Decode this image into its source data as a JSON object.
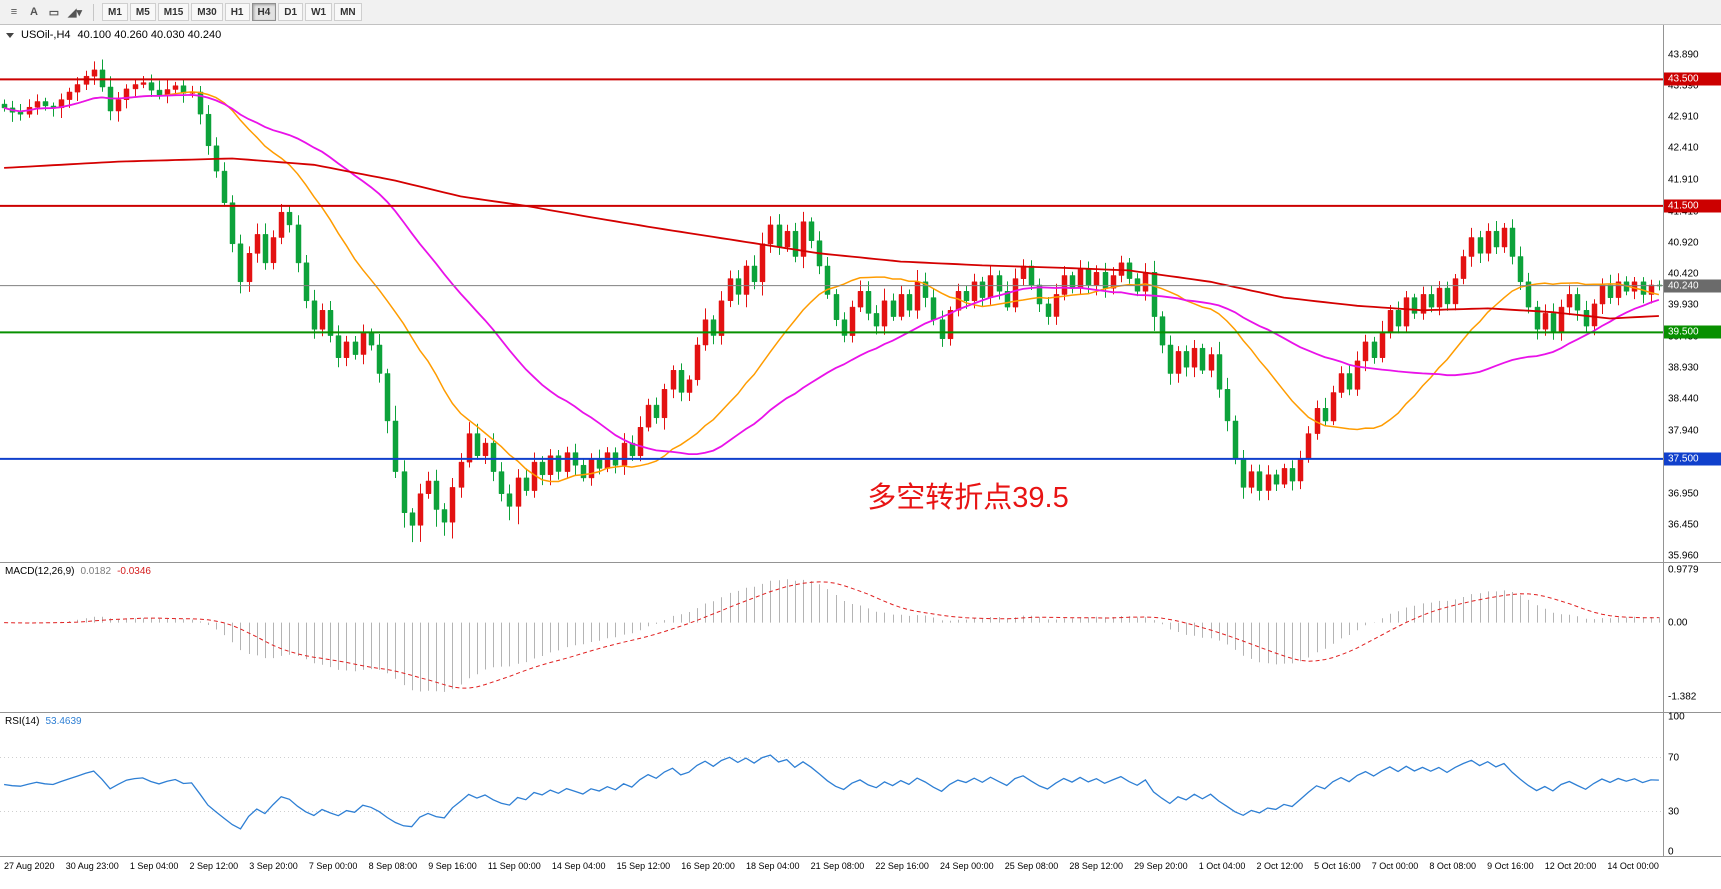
{
  "toolbar": {
    "tools": [
      {
        "id": "chart-objects",
        "glyph": "≡"
      },
      {
        "id": "text-tool",
        "glyph": "A"
      },
      {
        "id": "rectangle-tool",
        "glyph": "▭"
      },
      {
        "id": "draw-tools",
        "glyph": "◢▾"
      }
    ],
    "timeframes": [
      "M1",
      "M5",
      "M15",
      "M30",
      "H1",
      "H4",
      "D1",
      "W1",
      "MN"
    ],
    "active_timeframe": "H4"
  },
  "chart": {
    "symbol_title": "USOil-,H4",
    "ohlc": "40.100 40.260 40.030 40.240",
    "annotation": "多空转折点39.5",
    "price_badge": "40.240",
    "y_ticks": [
      "43.890",
      "43.390",
      "42.910",
      "42.410",
      "41.910",
      "41.410",
      "40.920",
      "40.420",
      "39.930",
      "39.430",
      "38.930",
      "38.440",
      "37.940",
      "37.440",
      "36.950",
      "36.450",
      "35.960"
    ]
  },
  "macd_panel": {
    "name": "MACD(12,26,9)",
    "value_main": "0.0182",
    "value_signal": "-0.0346",
    "y_ticks": [
      "0.9779",
      "0.00",
      "-1.382"
    ]
  },
  "rsi_panel": {
    "name": "RSI(14)",
    "value": "53.4639",
    "y_ticks": [
      "100",
      "70",
      "30",
      "0"
    ]
  },
  "time_axis": [
    "27 Aug 2020",
    "30 Aug 23:00",
    "1 Sep 04:00",
    "2 Sep 12:00",
    "3 Sep 20:00",
    "7 Sep 00:00",
    "8 Sep 08:00",
    "9 Sep 16:00",
    "11 Sep 00:00",
    "14 Sep 04:00",
    "15 Sep 12:00",
    "16 Sep 20:00",
    "18 Sep 04:00",
    "21 Sep 08:00",
    "22 Sep 16:00",
    "24 Sep 00:00",
    "25 Sep 08:00",
    "28 Sep 12:00",
    "29 Sep 20:00",
    "1 Oct 04:00",
    "2 Oct 12:00",
    "5 Oct 16:00",
    "7 Oct 00:00",
    "8 Oct 08:00",
    "9 Oct 16:00",
    "12 Oct 20:00",
    "14 Oct 00:00"
  ],
  "chart_data": {
    "type": "candlestick",
    "symbol": "USOil-",
    "period": "H4",
    "y_range": [
      35.87,
      44.36
    ],
    "up_color": "#e31212",
    "down_color": "#0da23a",
    "candles": {
      "closes": [
        43.05,
        42.98,
        42.95,
        43.06,
        43.15,
        43.08,
        43.05,
        43.18,
        43.3,
        43.42,
        43.55,
        43.65,
        43.38,
        43.0,
        43.18,
        43.35,
        43.42,
        43.45,
        43.33,
        43.25,
        43.34,
        43.4,
        43.28,
        43.3,
        42.95,
        42.45,
        42.05,
        41.55,
        40.9,
        40.3,
        40.75,
        41.05,
        40.6,
        41.0,
        41.4,
        41.2,
        40.6,
        40.0,
        39.55,
        39.85,
        39.45,
        39.1,
        39.35,
        39.15,
        39.5,
        39.3,
        38.85,
        38.1,
        37.3,
        36.65,
        36.45,
        36.95,
        37.15,
        36.7,
        36.5,
        37.05,
        37.45,
        37.9,
        37.55,
        37.75,
        37.3,
        36.95,
        36.75,
        37.2,
        37.0,
        37.45,
        37.25,
        37.55,
        37.3,
        37.6,
        37.4,
        37.2,
        37.5,
        37.35,
        37.6,
        37.4,
        37.75,
        37.55,
        38.0,
        38.35,
        38.15,
        38.6,
        38.9,
        38.55,
        38.75,
        39.3,
        39.7,
        39.45,
        40.0,
        40.35,
        40.1,
        40.55,
        40.3,
        40.9,
        41.2,
        40.85,
        41.1,
        40.7,
        41.25,
        40.95,
        40.55,
        40.1,
        39.7,
        39.45,
        39.9,
        40.15,
        39.8,
        39.6,
        40.0,
        39.75,
        40.1,
        39.85,
        40.3,
        40.05,
        39.7,
        39.4,
        39.85,
        40.15,
        40.0,
        40.3,
        40.05,
        40.4,
        40.15,
        39.9,
        40.35,
        40.55,
        40.25,
        39.95,
        39.75,
        40.1,
        40.4,
        40.2,
        40.5,
        40.25,
        40.45,
        40.2,
        40.4,
        40.6,
        40.35,
        40.15,
        40.45,
        39.75,
        39.3,
        38.85,
        39.2,
        38.95,
        39.25,
        38.9,
        39.15,
        38.6,
        38.1,
        37.5,
        37.05,
        37.3,
        37.0,
        37.25,
        37.1,
        37.35,
        37.15,
        37.5,
        37.9,
        38.3,
        38.1,
        38.55,
        38.85,
        38.6,
        39.05,
        39.35,
        39.1,
        39.5,
        39.85,
        39.6,
        40.05,
        39.8,
        40.1,
        39.9,
        40.2,
        39.95,
        40.35,
        40.7,
        41.0,
        40.75,
        41.1,
        40.85,
        41.15,
        40.7,
        40.3,
        39.9,
        39.55,
        39.8,
        39.5,
        39.9,
        40.1,
        39.85,
        39.6,
        39.95,
        40.25,
        40.05,
        40.3,
        40.15,
        40.3,
        40.1,
        40.25,
        40.24
      ]
    },
    "levels": [
      {
        "label": "43.500",
        "value": 43.5,
        "color": "#cc0000"
      },
      {
        "label": "41.500",
        "value": 41.5,
        "color": "#cc0000"
      },
      {
        "label": "39.500",
        "value": 39.5,
        "color": "#089000"
      },
      {
        "label": "37.500",
        "value": 37.5,
        "color": "#1040cc"
      }
    ],
    "current_price": 40.24,
    "price_line_color": "#808080",
    "moving_averages": {
      "fast": {
        "period": 20,
        "color": "#ff9c00"
      },
      "mid": {
        "period": 40,
        "color": "#e912e9"
      },
      "slow": {
        "color": "#d40000",
        "points": [
          [
            0,
            42.1
          ],
          [
            14,
            42.2
          ],
          [
            28,
            42.25
          ],
          [
            38,
            42.15
          ],
          [
            48,
            41.9
          ],
          [
            56,
            41.65
          ],
          [
            64,
            41.5
          ],
          [
            72,
            41.32
          ],
          [
            80,
            41.15
          ],
          [
            90,
            40.95
          ],
          [
            100,
            40.75
          ],
          [
            110,
            40.62
          ],
          [
            120,
            40.56
          ],
          [
            130,
            40.52
          ],
          [
            138,
            40.48
          ],
          [
            148,
            40.3
          ],
          [
            157,
            40.05
          ],
          [
            166,
            39.92
          ],
          [
            174,
            39.85
          ],
          [
            182,
            39.88
          ],
          [
            190,
            39.82
          ],
          [
            197,
            39.72
          ],
          [
            203,
            39.76
          ]
        ]
      }
    },
    "macd": {
      "fast_ema": 12,
      "slow_ema": 26,
      "signal_sma": 9,
      "histogram_color": "#b4b4b4",
      "signal_color": "#e02020",
      "y_range": [
        -1.65,
        1.1
      ]
    },
    "rsi": {
      "period": 14,
      "color": "#2e7fd4",
      "levels": [
        30,
        70
      ],
      "y_range": [
        0,
        100
      ]
    }
  }
}
